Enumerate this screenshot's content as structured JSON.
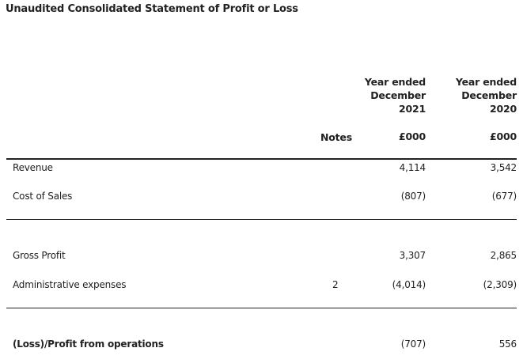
{
  "document": {
    "title": "Unaudited Consolidated Statement of Profit or Loss"
  },
  "columns": {
    "notes_header": "Notes",
    "year_2021": {
      "line1": "Year ended",
      "line2": "December",
      "line3": "2021",
      "unit": "£000"
    },
    "year_2020": {
      "line1": "Year ended",
      "line2": "December",
      "line3": "2020",
      "unit": "£000"
    }
  },
  "rows": [
    {
      "label": "Revenue",
      "note": "",
      "v2021": "4,114",
      "v2020": "3,542"
    },
    {
      "label": "Cost of Sales",
      "note": "",
      "v2021": "(807)",
      "v2020": "(677)"
    },
    {
      "label": "Gross Profit",
      "note": "",
      "v2021": "3,307",
      "v2020": "2,865"
    },
    {
      "label": "Administrative expenses",
      "note": "2",
      "v2021": "(4,014)",
      "v2020": "(2,309)"
    },
    {
      "label": "(Loss)/Profit from operations",
      "note": "",
      "v2021": "(707)",
      "v2020": "556"
    }
  ]
}
